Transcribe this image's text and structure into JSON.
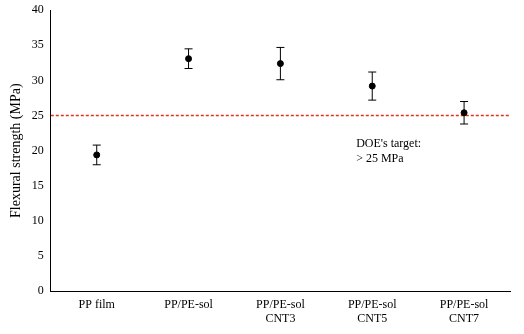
{
  "chart_data": {
    "type": "scatter",
    "y_label": "Flexural strength (MPa)",
    "categories": [
      "PP film",
      "PP/PE-sol",
      [
        "PP/PE-sol",
        "CNT3"
      ],
      [
        "PP/PE-sol",
        "CNT5"
      ],
      [
        "PP/PE-sol",
        "CNT7"
      ]
    ],
    "values": [
      19.4,
      33.1,
      32.4,
      29.2,
      25.4
    ],
    "errors": [
      1.4,
      1.4,
      2.3,
      2.0,
      1.6
    ],
    "color": "#000000",
    "marker": "circle",
    "ylim": [
      0,
      40
    ],
    "yticks": [
      0,
      5,
      10,
      15,
      20,
      25,
      30,
      35,
      40
    ],
    "grid": false,
    "target": {
      "value": 25,
      "label": [
        "DOE's target:",
        "> 25 MPa"
      ],
      "color": "#e03020",
      "line_style": "dashed"
    }
  }
}
